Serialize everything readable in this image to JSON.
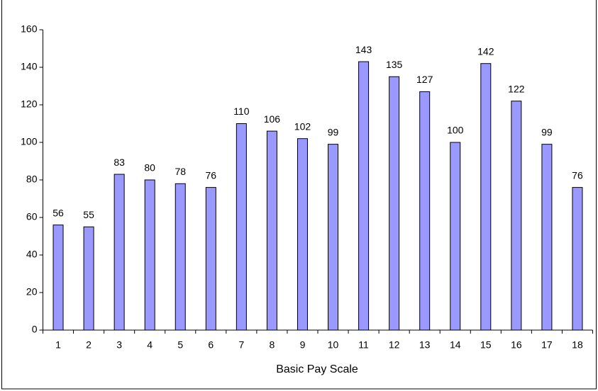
{
  "chart_data": {
    "type": "bar",
    "x_label": "Basic Pay Scale",
    "categories": [
      1,
      2,
      3,
      4,
      5,
      6,
      7,
      8,
      9,
      10,
      11,
      12,
      13,
      14,
      15,
      16,
      17,
      18
    ],
    "values": [
      56,
      55,
      83,
      80,
      78,
      76,
      110,
      106,
      102,
      99,
      143,
      135,
      127,
      100,
      142,
      122,
      99,
      76
    ],
    "color": "#9999ff",
    "ylim": [
      0,
      160
    ],
    "yticks": [
      0,
      20,
      40,
      60,
      80,
      100,
      120,
      140,
      160
    ]
  }
}
